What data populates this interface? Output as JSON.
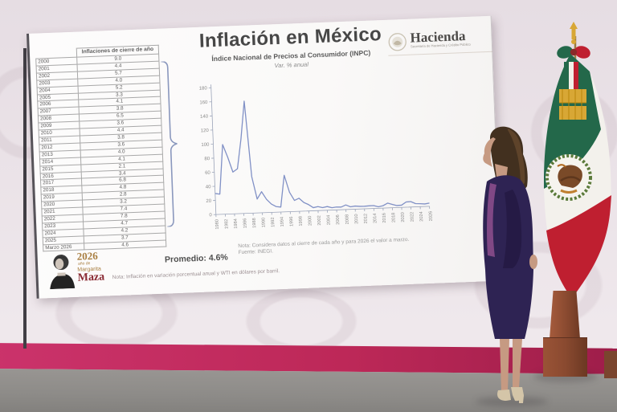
{
  "slide": {
    "title": "Inflación en México",
    "subtitle": "Índice Nacional de Precios al Consumidor (INPC)",
    "unit_note": "Var. % anual",
    "hacienda": {
      "name": "Hacienda",
      "subtext": "Secretaría de Hacienda y Crédito Público"
    },
    "table": {
      "header": "Inflaciones de cierre de año",
      "rows": [
        [
          "2000",
          "9.0"
        ],
        [
          "2001",
          "4.4"
        ],
        [
          "2002",
          "5.7"
        ],
        [
          "2003",
          "4.0"
        ],
        [
          "2004",
          "5.2"
        ],
        [
          "2005",
          "3.3"
        ],
        [
          "2006",
          "4.1"
        ],
        [
          "2007",
          "3.8"
        ],
        [
          "2008",
          "6.5"
        ],
        [
          "2009",
          "3.6"
        ],
        [
          "2010",
          "4.4"
        ],
        [
          "2011",
          "3.8"
        ],
        [
          "2012",
          "3.6"
        ],
        [
          "2013",
          "4.0"
        ],
        [
          "2014",
          "4.1"
        ],
        [
          "2015",
          "2.1"
        ],
        [
          "2016",
          "3.4"
        ],
        [
          "2017",
          "6.8"
        ],
        [
          "2018",
          "4.8"
        ],
        [
          "2019",
          "2.8"
        ],
        [
          "2020",
          "3.2"
        ],
        [
          "2021",
          "7.4"
        ],
        [
          "2022",
          "7.8"
        ],
        [
          "2023",
          "4.7"
        ],
        [
          "2024",
          "4.2"
        ],
        [
          "2025",
          "3.7"
        ],
        [
          "Marzo 2026",
          "4.6"
        ]
      ]
    },
    "promedio": "Promedio: 4.6%",
    "chart_note_line1": "Nota: Considera datos al cierre de cada año y para 2026 el valor a marzo.",
    "chart_note_line2": "Fuente: INEGI.",
    "bottom_note": "Nota: Inflación en variación porcentual anual y WTI en dólares por barril.",
    "year_logo": {
      "year": "2026",
      "prefix": "año de",
      "name_line1": "Margarita",
      "name_line2": "Maza"
    }
  },
  "chart_data": {
    "type": "line",
    "title": "Inflación en México",
    "subtitle": "Índice Nacional de Precios al Consumidor (INPC)",
    "ylabel": "Var. % anual",
    "x": [
      1980,
      1981,
      1982,
      1983,
      1984,
      1985,
      1986,
      1987,
      1988,
      1989,
      1990,
      1991,
      1992,
      1993,
      1994,
      1995,
      1996,
      1997,
      1998,
      1999,
      2000,
      2001,
      2002,
      2003,
      2004,
      2005,
      2006,
      2007,
      2008,
      2009,
      2010,
      2011,
      2012,
      2013,
      2014,
      2015,
      2016,
      2017,
      2018,
      2019,
      2020,
      2021,
      2022,
      2023,
      2024,
      2025,
      2026
    ],
    "y": [
      29.8,
      28.7,
      98.8,
      80.8,
      59.2,
      63.7,
      105.7,
      159.2,
      51.7,
      19.7,
      29.9,
      18.8,
      11.9,
      8.0,
      7.1,
      52.0,
      27.7,
      15.7,
      18.6,
      12.3,
      9.0,
      4.4,
      5.7,
      4.0,
      5.2,
      3.3,
      4.1,
      3.8,
      6.5,
      3.6,
      4.4,
      3.8,
      3.6,
      4.0,
      4.1,
      2.1,
      3.4,
      6.8,
      4.8,
      2.8,
      3.2,
      7.4,
      7.8,
      4.7,
      4.2,
      3.7,
      4.6
    ],
    "ylim": [
      0,
      180
    ],
    "ytick_step": 20,
    "xtick_step_years": 2,
    "grid": false,
    "legend": "none",
    "source": "INEGI"
  },
  "colors": {
    "wall-top": "#e6dde3",
    "wall-bottom": "#efe8ec",
    "floor": "#8d8b88",
    "baseboard": "#bd2858",
    "screen": "#faf9f8",
    "title-text": "#474747",
    "table-text": "#5f5f5f",
    "line": "#8191c6",
    "axis": "#9aa3b8",
    "flag-green": "#23684a",
    "flag-red": "#bf1f30",
    "flag-gold": "#d8a735",
    "wood": "#8a4a30",
    "suit": "#2e2353",
    "embroidery": "#8e4f8e",
    "skin": "#c69a82",
    "hair": "#42301f",
    "shoe": "#d4c5a8",
    "gold-text": "#a97f42",
    "maroon-text": "#8a2a33",
    "note-gray": "#9a9a9a"
  }
}
